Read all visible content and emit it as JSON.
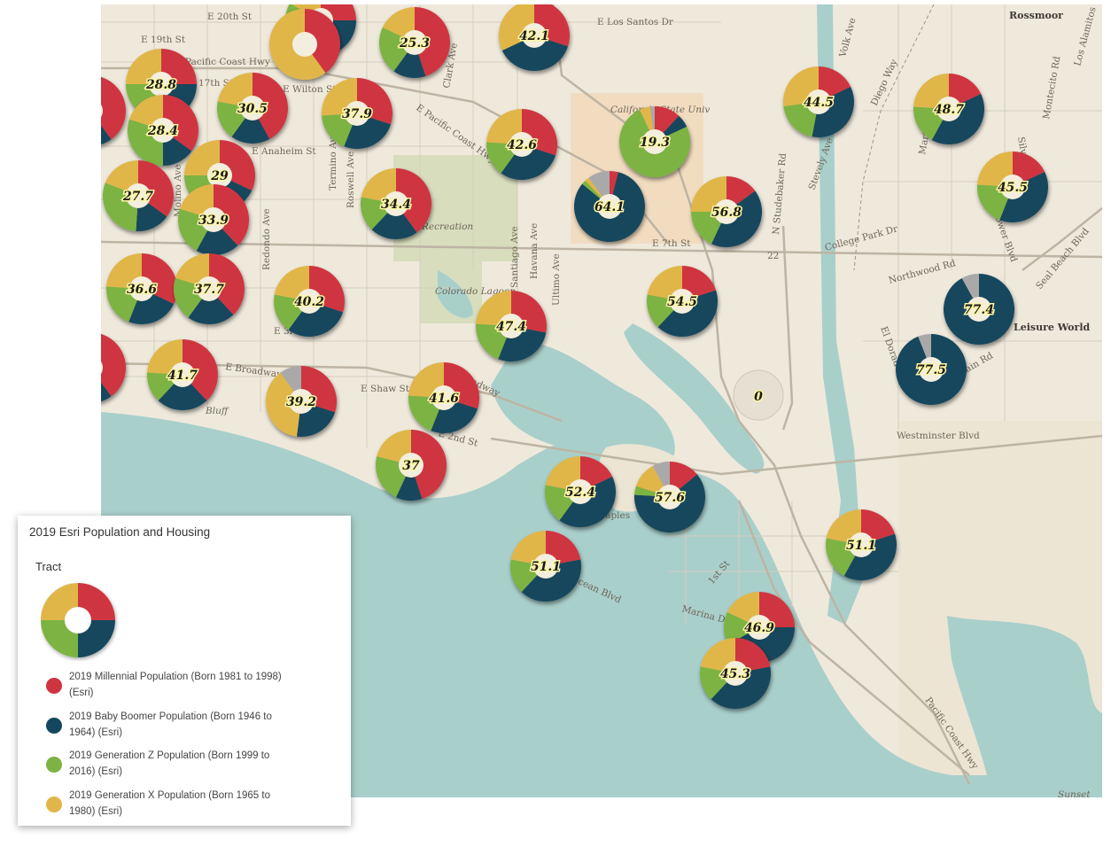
{
  "colors": {
    "millennial": "#cf3441",
    "boomer": "#14475d",
    "genz": "#7cb342",
    "genx": "#e0b64a",
    "other": "#a9a9a9",
    "water": "#a9cfcb",
    "land": "#efe9dc"
  },
  "map": {
    "street_labels": [
      "E 20th St",
      "E 19th St",
      "Pacific Coast Hwy",
      "17th St",
      "E Wilton St",
      "E Anaheim St",
      "E Los Santos Dr",
      "Clark Ave",
      "E Pacific Coast Hwy",
      "Volk Ave",
      "Rossmoor",
      "Los Alamitos",
      "Silver Fox Rd",
      "Montecito Rd",
      "Diego Way",
      "Martha Ave",
      "Stevely Ave",
      "Bellflower Blvd",
      "N Studebaker Rd",
      "College Park Dr",
      "Seal Beach Blvd",
      "Northwood Rd",
      "Leisure World",
      "El Dorado Dr",
      "Golden Rain Rd",
      "Westminster Blvd",
      "E 7th St",
      "Redondo Ave",
      "Termino Ave",
      "Roswell Ave",
      "Molino Ave",
      "Santiago Ave",
      "Havana Ave",
      "Ultimo Ave",
      "Recreation",
      "Colorado Lagoon",
      "E 3rd St",
      "E Broadway",
      "E Shaw St",
      "Broadway",
      "Bluff",
      "E 2nd St",
      "Naples",
      "Ocean Blvd",
      "Marina Dr",
      "1st St",
      "Pacific Coast Hwy",
      "Sunset",
      "California State Univ",
      "22",
      "0"
    ]
  },
  "pies": [
    {
      "value": "42.1",
      "m": 30,
      "b": 38,
      "z": 0,
      "x": 32,
      "o": 0
    },
    {
      "value": "25.3",
      "m": 45,
      "b": 15,
      "z": 22,
      "x": 18,
      "o": 0
    },
    {
      "value": "",
      "m": 25,
      "b": 40,
      "z": 18,
      "x": 17,
      "o": 0
    },
    {
      "value": "28.8",
      "m": 25,
      "b": 22,
      "z": 28,
      "x": 25,
      "o": 0
    },
    {
      "value": "30.5",
      "m": 42,
      "b": 18,
      "z": 18,
      "x": 22,
      "o": 0
    },
    {
      "value": "37.9",
      "m": 30,
      "b": 26,
      "z": 18,
      "x": 26,
      "o": 0
    },
    {
      "value": "42.6",
      "m": 30,
      "b": 30,
      "z": 16,
      "x": 24,
      "o": 0
    },
    {
      "value": "19.3",
      "m": 12,
      "b": 6,
      "z": 75,
      "x": 5,
      "o": 2
    },
    {
      "value": "44.5",
      "m": 18,
      "b": 35,
      "z": 20,
      "x": 27,
      "o": 0
    },
    {
      "value": "48.7",
      "m": 18,
      "b": 40,
      "z": 18,
      "x": 24,
      "o": 0
    },
    {
      "value": "28.4",
      "m": 35,
      "b": 15,
      "z": 30,
      "x": 20,
      "o": 0
    },
    {
      "value": "29",
      "m": 32,
      "b": 18,
      "z": 25,
      "x": 25,
      "o": 0
    },
    {
      "value": "27.7",
      "m": 35,
      "b": 16,
      "z": 30,
      "x": 19,
      "o": 0
    },
    {
      "value": "33.9",
      "m": 38,
      "b": 20,
      "z": 22,
      "x": 20,
      "o": 0
    },
    {
      "value": "34.4",
      "m": 40,
      "b": 22,
      "z": 16,
      "x": 22,
      "o": 0
    },
    {
      "value": "64.1",
      "m": 4,
      "b": 82,
      "z": 2,
      "x": 2,
      "o": 10
    },
    {
      "value": "56.8",
      "m": 15,
      "b": 42,
      "z": 18,
      "x": 25,
      "o": 0
    },
    {
      "value": "45.5",
      "m": 18,
      "b": 38,
      "z": 20,
      "x": 24,
      "o": 0
    },
    {
      "value": "36.6",
      "m": 32,
      "b": 24,
      "z": 20,
      "x": 24,
      "o": 0
    },
    {
      "value": "37.7",
      "m": 38,
      "b": 22,
      "z": 20,
      "x": 20,
      "o": 0
    },
    {
      "value": "40.2",
      "m": 30,
      "b": 30,
      "z": 18,
      "x": 22,
      "o": 0
    },
    {
      "value": "47.4",
      "m": 28,
      "b": 28,
      "z": 20,
      "x": 24,
      "o": 0
    },
    {
      "value": "54.5",
      "m": 20,
      "b": 42,
      "z": 16,
      "x": 22,
      "o": 0
    },
    {
      "value": "77.4",
      "m": 0,
      "b": 92,
      "z": 0,
      "x": 0,
      "o": 8
    },
    {
      "value": "77.5",
      "m": 0,
      "b": 94,
      "z": 0,
      "x": 0,
      "o": 6
    },
    {
      "value": "41.7",
      "m": 38,
      "b": 24,
      "z": 14,
      "x": 24,
      "o": 0
    },
    {
      "value": "39.2",
      "m": 30,
      "b": 22,
      "z": 0,
      "x": 38,
      "o": 10
    },
    {
      "value": "41.6",
      "m": 30,
      "b": 26,
      "z": 20,
      "x": 24,
      "o": 0
    },
    {
      "value": "37",
      "m": 45,
      "b": 12,
      "z": 22,
      "x": 21,
      "o": 0
    },
    {
      "value": "52.4",
      "m": 18,
      "b": 42,
      "z": 18,
      "x": 22,
      "o": 0
    },
    {
      "value": "57.6",
      "m": 14,
      "b": 62,
      "z": 4,
      "x": 12,
      "o": 8
    },
    {
      "value": "51.1",
      "m": 22,
      "b": 40,
      "z": 16,
      "x": 22,
      "o": 0
    },
    {
      "value": "51.1",
      "m": 20,
      "b": 38,
      "z": 20,
      "x": 22,
      "o": 0
    },
    {
      "value": "46.9",
      "m": 25,
      "b": 42,
      "z": 15,
      "x": 18,
      "o": 0
    },
    {
      "value": "45.3",
      "m": 22,
      "b": 40,
      "z": 16,
      "x": 22,
      "o": 0
    },
    {
      "value": "",
      "m": 40,
      "b": 0,
      "z": 0,
      "x": 60,
      "o": 0
    },
    {
      "value": "",
      "m": 40,
      "b": 20,
      "z": 20,
      "x": 20,
      "o": 0
    },
    {
      "value": "",
      "m": 40,
      "b": 20,
      "z": 20,
      "x": 20,
      "o": 0
    }
  ],
  "legend": {
    "title": "2019 Esri Population and Housing",
    "subtitle": "Tract",
    "items": [
      {
        "label": "2019 Millennial Population (Born 1981 to 1998) (Esri)"
      },
      {
        "label": "2019 Baby Boomer Population (Born 1946 to 1964) (Esri)"
      },
      {
        "label": "2019 Generation Z Population (Born 1999 to 2016) (Esri)"
      },
      {
        "label": "2019 Generation X Population (Born 1965 to 1980) (Esri)"
      }
    ]
  }
}
